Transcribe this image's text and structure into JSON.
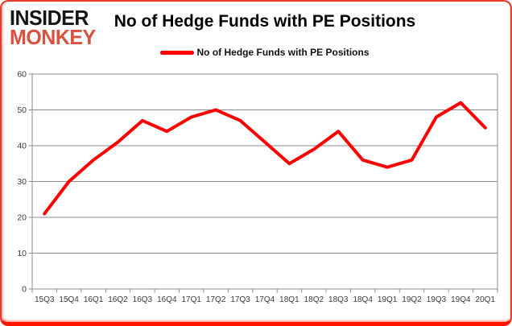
{
  "logo": {
    "line1": "INSIDER",
    "line2": "MONKEY"
  },
  "header": {
    "title": "No of Hedge Funds with PE Positions"
  },
  "legend": {
    "label": "No of Hedge Funds with PE Positions"
  },
  "colors": {
    "line": "#ff0000",
    "grid": "#8c8c8c",
    "axis_text": "#3a3a3a",
    "logo_black": "#151515",
    "logo_red": "#d9513f",
    "frame_border": "#e8392a"
  },
  "chart_data": {
    "type": "line",
    "title": "No of Hedge Funds with PE Positions",
    "categories": [
      "15Q3",
      "15Q4",
      "16Q1",
      "16Q2",
      "16Q3",
      "16Q4",
      "17Q1",
      "17Q2",
      "17Q3",
      "17Q4",
      "18Q1",
      "18Q2",
      "18Q3",
      "18Q4",
      "19Q1",
      "19Q2",
      "19Q3",
      "19Q4",
      "20Q1"
    ],
    "series": [
      {
        "name": "No of Hedge Funds with PE Positions",
        "color": "#ff0000",
        "values": [
          21,
          30,
          36,
          41,
          47,
          44,
          48,
          50,
          47,
          41,
          35,
          39,
          44,
          36,
          34,
          36,
          48,
          52,
          45
        ]
      }
    ],
    "xlabel": "",
    "ylabel": "",
    "ylim": [
      0,
      60
    ],
    "yticks": [
      0,
      10,
      20,
      30,
      40,
      50,
      60
    ],
    "grid": true,
    "legend_position": "top"
  }
}
